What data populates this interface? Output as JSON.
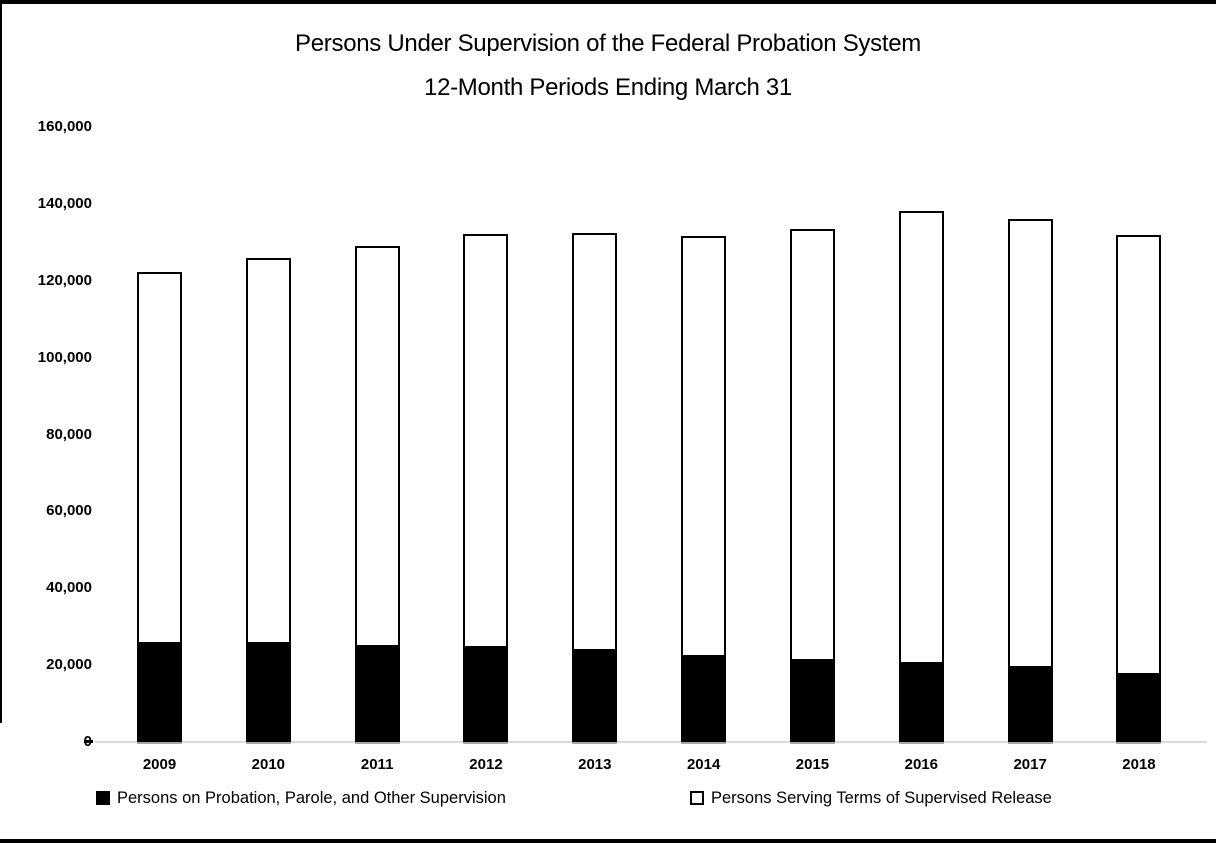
{
  "page": {
    "border_color": "#000000",
    "background": "#ffffff"
  },
  "chart_data": {
    "type": "bar",
    "stacked": true,
    "title": "Persons Under Supervision of the Federal Probation System",
    "subtitle": "12-Month Periods Ending March 31",
    "xlabel": "",
    "ylabel": "",
    "ylim": [
      0,
      160000
    ],
    "grid": false,
    "legend_position": "bottom",
    "axis_color": "#d9d9d9",
    "text_color": "#000000",
    "categories": [
      "2009",
      "2010",
      "2011",
      "2012",
      "2013",
      "2014",
      "2015",
      "2016",
      "2017",
      "2018"
    ],
    "series": [
      {
        "name": "Persons on Probation, Parole, and Other Supervision",
        "color": "#000000",
        "values": [
          25500,
          25600,
          24800,
          24400,
          23600,
          22000,
          21000,
          20300,
          19200,
          17500
        ]
      },
      {
        "name": "Persons Serving Terms of Supervised Release",
        "color": "#ffffff",
        "values": [
          96900,
          100400,
          104200,
          107800,
          108700,
          109700,
          112400,
          117800,
          116900,
          114500
        ]
      }
    ],
    "totals": [
      122400,
      126000,
      129000,
      132200,
      132300,
      131700,
      133400,
      138100,
      136100,
      132000
    ],
    "y_ticks": [
      {
        "label": "0",
        "value": 0
      },
      {
        "label": "20,000",
        "value": 20000
      },
      {
        "label": "40,000",
        "value": 40000
      },
      {
        "label": "60,000",
        "value": 60000
      },
      {
        "label": "80,000",
        "value": 80000
      },
      {
        "label": "100,000",
        "value": 100000
      },
      {
        "label": "120,000",
        "value": 120000
      },
      {
        "label": "140,000",
        "value": 140000
      },
      {
        "label": "160,000",
        "value": 160000
      }
    ]
  }
}
